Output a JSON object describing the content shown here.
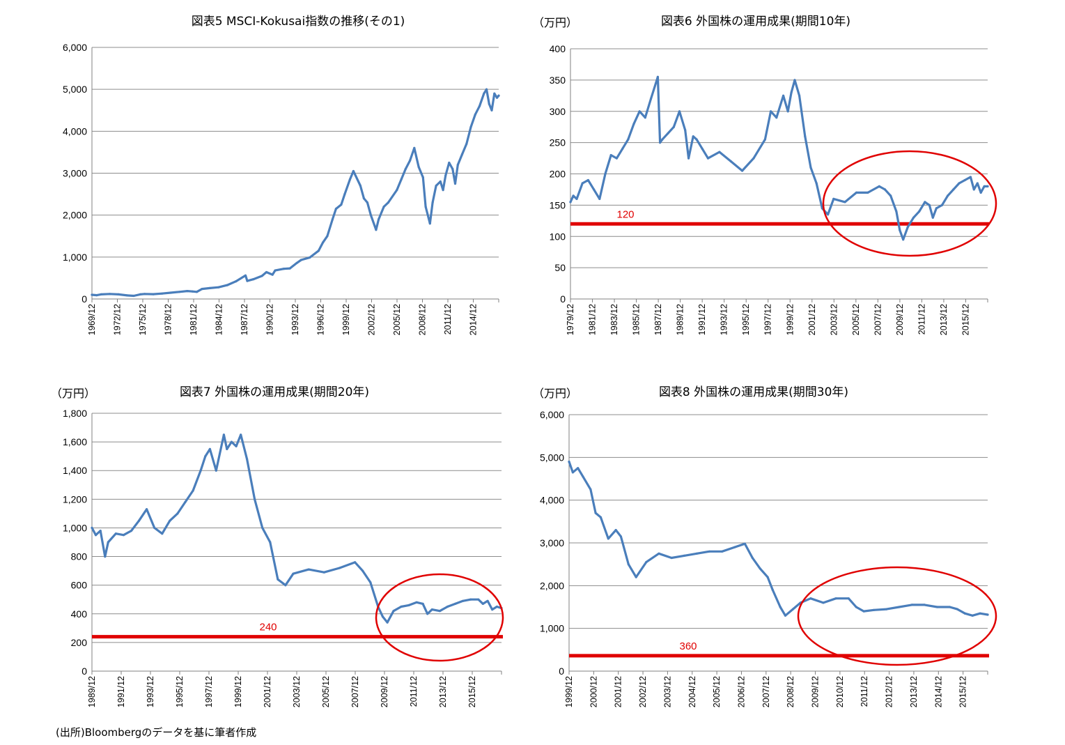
{
  "source_note": "(出所)Bloombergのデータを基に筆者作成",
  "colors": {
    "series": "#4a7ebb",
    "reference": "#e00000",
    "circle": "#e00000",
    "grid": "#8c8c8c"
  },
  "chart_data": [
    {
      "type": "line",
      "title": "図表5 MSCI-Kokusai指数の推移(その1)",
      "unit": "",
      "xlabel": "",
      "ylabel": "",
      "ylim": [
        0,
        6000
      ],
      "yticks": [
        0,
        1000,
        2000,
        3000,
        4000,
        5000,
        6000
      ],
      "ytick_labels": [
        "0",
        "1,000",
        "2,000",
        "3,000",
        "4,000",
        "5,000",
        "6,000"
      ],
      "xlim": [
        1969.95,
        2016.7
      ],
      "xtick_labels": [
        "1969/12",
        "1972/12",
        "1975/12",
        "1978/12",
        "1981/12",
        "1984/12",
        "1987/12",
        "1990/12",
        "1993/12",
        "1996/12",
        "1999/12",
        "2002/12",
        "2005/12",
        "2008/12",
        "2011/12",
        "2014/12"
      ],
      "grid": true,
      "legend": "none",
      "series": [
        {
          "x": [
            1969.95,
            1970.5,
            1971,
            1972,
            1973,
            1974,
            1974.75,
            1975.5,
            1976,
            1977,
            1978,
            1979,
            1980,
            1980.9,
            1981.5,
            1982,
            1982.6,
            1983.5,
            1984.5,
            1985.5,
            1986.5,
            1987.6,
            1987.8,
            1988.5,
            1989.5,
            1990,
            1990.7,
            1991,
            1992,
            1992.7,
            1993.5,
            1994,
            1995,
            1996,
            1996.5,
            1997,
            1997.6,
            1998,
            1998.6,
            1999,
            1999.6,
            2000,
            2000.8,
            2001.2,
            2001.6,
            2002,
            2002.6,
            2002.9,
            2003.5,
            2004,
            2005,
            2005.5,
            2006,
            2006.5,
            2007,
            2007.5,
            2008,
            2008.3,
            2008.8,
            2009.1,
            2009.5,
            2010,
            2010.3,
            2010.6,
            2011,
            2011.4,
            2011.7,
            2012,
            2012.5,
            2013,
            2013.5,
            2014,
            2014.5,
            2015,
            2015.3,
            2015.6,
            2015.9,
            2016.2,
            2016.5,
            2016.7
          ],
          "values": [
            100,
            90,
            110,
            120,
            110,
            85,
            75,
            110,
            120,
            115,
            130,
            150,
            170,
            190,
            180,
            170,
            240,
            260,
            280,
            330,
            420,
            560,
            430,
            470,
            550,
            640,
            580,
            680,
            720,
            730,
            860,
            930,
            990,
            1150,
            1350,
            1500,
            1900,
            2150,
            2250,
            2500,
            2850,
            3050,
            2700,
            2400,
            2300,
            2000,
            1650,
            1900,
            2200,
            2300,
            2600,
            2850,
            3100,
            3300,
            3600,
            3150,
            2900,
            2200,
            1800,
            2300,
            2700,
            2800,
            2600,
            2950,
            3250,
            3100,
            2750,
            3200,
            3450,
            3700,
            4100,
            4400,
            4600,
            4900,
            5000,
            4650,
            4500,
            4900,
            4800,
            4850
          ]
        }
      ],
      "reference": null
    },
    {
      "type": "line",
      "title": "図表6 外国株の運用成果(期間10年)",
      "unit": "（万円）",
      "xlabel": "",
      "ylabel": "",
      "ylim": [
        0,
        400
      ],
      "yticks": [
        0,
        50,
        100,
        150,
        200,
        250,
        300,
        350,
        400
      ],
      "ytick_labels": [
        "0",
        "50",
        "100",
        "150",
        "200",
        "250",
        "300",
        "350",
        "400"
      ],
      "xlim": [
        1979.95,
        2016.5
      ],
      "xtick_labels": [
        "1979/12",
        "1981/12",
        "1983/12",
        "1985/12",
        "1987/12",
        "1989/12",
        "1991/12",
        "1993/12",
        "1995/12",
        "1997/12",
        "1999/12",
        "2001/12",
        "2003/12",
        "2005/12",
        "2007/12",
        "2009/12",
        "2011/12",
        "2013/12",
        "2015/12"
      ],
      "grid": true,
      "legend": "none",
      "series": [
        {
          "x": [
            1979.95,
            1980.2,
            1980.5,
            1981,
            1981.5,
            1982,
            1982.5,
            1983,
            1983.5,
            1984,
            1984.5,
            1985,
            1985.5,
            1986,
            1986.5,
            1987,
            1987.6,
            1987.8,
            1988,
            1988.5,
            1989,
            1989.5,
            1990,
            1990.3,
            1990.7,
            1991,
            1991.5,
            1992,
            1993,
            1994,
            1995,
            1996,
            1997,
            1997.5,
            1998,
            1998.6,
            1999,
            1999.3,
            1999.6,
            2000,
            2000.5,
            2001,
            2001.5,
            2002,
            2002.5,
            2003,
            2004,
            2005,
            2006,
            2007,
            2007.5,
            2008,
            2008.5,
            2008.8,
            2009.1,
            2009.5,
            2010,
            2010.5,
            2011,
            2011.4,
            2011.7,
            2012,
            2012.5,
            2013,
            2013.5,
            2014,
            2014.5,
            2015,
            2015.3,
            2015.6,
            2015.9,
            2016.2,
            2016.5
          ],
          "values": [
            155,
            165,
            160,
            185,
            190,
            175,
            160,
            200,
            230,
            225,
            240,
            255,
            280,
            300,
            290,
            320,
            355,
            250,
            255,
            265,
            275,
            300,
            270,
            225,
            260,
            255,
            240,
            225,
            235,
            220,
            205,
            225,
            255,
            300,
            290,
            325,
            300,
            330,
            350,
            325,
            260,
            210,
            185,
            145,
            135,
            160,
            155,
            170,
            170,
            180,
            175,
            165,
            140,
            110,
            95,
            115,
            130,
            140,
            155,
            150,
            130,
            145,
            150,
            165,
            175,
            185,
            190,
            195,
            175,
            185,
            170,
            180,
            180
          ]
        }
      ],
      "reference": {
        "value": 120,
        "label": "120"
      }
    },
    {
      "type": "line",
      "title": "図表7 外国株の運用成果(期間20年)",
      "unit": "（万円）",
      "xlabel": "",
      "ylabel": "",
      "ylim": [
        0,
        1800
      ],
      "yticks": [
        0,
        200,
        400,
        600,
        800,
        1000,
        1200,
        1400,
        1600,
        1800
      ],
      "ytick_labels": [
        "0",
        "200",
        "400",
        "600",
        "800",
        "1,000",
        "1,200",
        "1,400",
        "1,600",
        "1,800"
      ],
      "xlim": [
        1989.95,
        2016.5
      ],
      "xtick_labels": [
        "1989/12",
        "1991/12",
        "1993/12",
        "1995/12",
        "1997/12",
        "1999/12",
        "2001/12",
        "2003/12",
        "2005/12",
        "2007/12",
        "2009/12",
        "2011/12",
        "2013/12",
        "2015/12"
      ],
      "grid": true,
      "legend": "none",
      "series": [
        {
          "x": [
            1989.95,
            1990.2,
            1990.5,
            1990.8,
            1991,
            1991.5,
            1992,
            1992.5,
            1993,
            1993.5,
            1994,
            1994.5,
            1995,
            1995.5,
            1996,
            1996.5,
            1997,
            1997.3,
            1997.6,
            1998,
            1998.5,
            1998.7,
            1999,
            1999.3,
            1999.6,
            2000,
            2000.5,
            2001,
            2001.5,
            2002,
            2002.5,
            2003,
            2004,
            2005,
            2006,
            2007,
            2007.5,
            2008,
            2008.5,
            2008.8,
            2009.1,
            2009.5,
            2010,
            2010.5,
            2011,
            2011.4,
            2011.7,
            2012,
            2012.5,
            2013,
            2013.5,
            2014,
            2014.5,
            2015,
            2015.3,
            2015.6,
            2015.9,
            2016.2,
            2016.5
          ],
          "values": [
            1000,
            950,
            980,
            800,
            900,
            960,
            950,
            980,
            1050,
            1130,
            1000,
            960,
            1050,
            1100,
            1180,
            1260,
            1400,
            1500,
            1550,
            1400,
            1650,
            1550,
            1600,
            1570,
            1650,
            1480,
            1200,
            1000,
            900,
            640,
            600,
            680,
            710,
            690,
            720,
            760,
            700,
            620,
            450,
            380,
            340,
            420,
            450,
            460,
            480,
            470,
            400,
            430,
            420,
            450,
            470,
            490,
            500,
            500,
            470,
            490,
            430,
            450,
            440
          ]
        }
      ],
      "reference": {
        "value": 240,
        "label": "240"
      }
    },
    {
      "type": "line",
      "title": "図表8 外国株の運用成果(期間30年)",
      "unit": "（万円）",
      "xlabel": "",
      "ylabel": "",
      "ylim": [
        0,
        6000
      ],
      "yticks": [
        0,
        1000,
        2000,
        3000,
        4000,
        5000,
        6000
      ],
      "ytick_labels": [
        "0",
        "1,000",
        "2,000",
        "3,000",
        "4,000",
        "5,000",
        "6,000"
      ],
      "xlim": [
        1999.95,
        2016.5
      ],
      "xtick_labels": [
        "1999/12",
        "2000/12",
        "2001/12",
        "2002/12",
        "2003/12",
        "2004/12",
        "2005/12",
        "2006/12",
        "2007/12",
        "2008/12",
        "2009/12",
        "2010/12",
        "2011/12",
        "2012/12",
        "2013/12",
        "2014/12",
        "2015/12"
      ],
      "grid": true,
      "legend": "none",
      "series": [
        {
          "x": [
            1999.95,
            2000.1,
            2000.3,
            2000.5,
            2000.8,
            2001,
            2001.2,
            2001.5,
            2001.8,
            2002,
            2002.3,
            2002.6,
            2003,
            2003.5,
            2004,
            2004.5,
            2005,
            2005.5,
            2006,
            2006.5,
            2006.9,
            2007.2,
            2007.5,
            2007.8,
            2008,
            2008.3,
            2008.5,
            2008.8,
            2009.1,
            2009.5,
            2010,
            2010.5,
            2011,
            2011.3,
            2011.6,
            2012,
            2012.5,
            2013,
            2013.5,
            2014,
            2014.5,
            2015,
            2015.3,
            2015.6,
            2015.9,
            2016.2,
            2016.5
          ],
          "values": [
            4900,
            4650,
            4750,
            4550,
            4250,
            3700,
            3600,
            3100,
            3300,
            3150,
            2500,
            2200,
            2550,
            2750,
            2650,
            2700,
            2750,
            2800,
            2800,
            2900,
            2980,
            2650,
            2400,
            2200,
            1900,
            1500,
            1300,
            1450,
            1600,
            1700,
            1600,
            1700,
            1700,
            1500,
            1400,
            1430,
            1450,
            1500,
            1550,
            1550,
            1500,
            1500,
            1450,
            1350,
            1300,
            1350,
            1320
          ]
        }
      ],
      "reference": {
        "value": 360,
        "label": "360"
      }
    }
  ]
}
